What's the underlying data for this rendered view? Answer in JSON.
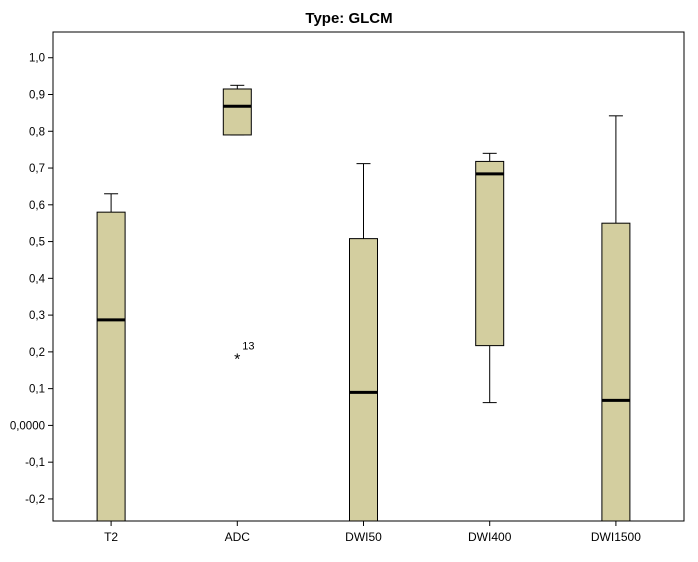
{
  "chart_data": {
    "type": "boxplot",
    "title": "Type: GLCM",
    "xlabel": "",
    "ylabel": "",
    "ylim": [
      -0.26,
      1.07
    ],
    "yticks": [
      {
        "value": 1.0,
        "label": "1,0"
      },
      {
        "value": 0.9,
        "label": "0,9"
      },
      {
        "value": 0.8,
        "label": "0,8"
      },
      {
        "value": 0.7,
        "label": "0,7"
      },
      {
        "value": 0.6,
        "label": "0,6"
      },
      {
        "value": 0.5,
        "label": "0,5"
      },
      {
        "value": 0.4,
        "label": "0,4"
      },
      {
        "value": 0.3,
        "label": "0,3"
      },
      {
        "value": 0.2,
        "label": "0,2"
      },
      {
        "value": 0.1,
        "label": "0,1"
      },
      {
        "value": 0.0,
        "label": "0,0000"
      },
      {
        "value": -0.1,
        "label": "-0,1"
      },
      {
        "value": -0.2,
        "label": "-0,2"
      }
    ],
    "categories": [
      "T2",
      "ADC",
      "DWI50",
      "DWI400",
      "DWI1500"
    ],
    "boxes": [
      {
        "category": "T2",
        "whisker_low": -0.26,
        "q1": -0.26,
        "median": 0.287,
        "q3": 0.58,
        "whisker_high": 0.63
      },
      {
        "category": "ADC",
        "whisker_low": 0.79,
        "q1": 0.79,
        "median": 0.868,
        "q3": 0.915,
        "whisker_high": 0.925
      },
      {
        "category": "DWI50",
        "whisker_low": -0.26,
        "q1": -0.26,
        "median": 0.09,
        "q3": 0.508,
        "whisker_high": 0.712
      },
      {
        "category": "DWI400",
        "whisker_low": 0.062,
        "q1": 0.217,
        "median": 0.684,
        "q3": 0.718,
        "whisker_high": 0.74
      },
      {
        "category": "DWI1500",
        "whisker_low": -0.26,
        "q1": -0.26,
        "median": 0.068,
        "q3": 0.55,
        "whisker_high": 0.842
      }
    ],
    "outliers": [
      {
        "category": "ADC",
        "value": 0.19,
        "marker": "*",
        "label": "13"
      }
    ],
    "colors": {
      "box_fill": "#d3ce9f",
      "box_stroke": "#000000",
      "median": "#000000",
      "frame": "#000000"
    }
  }
}
